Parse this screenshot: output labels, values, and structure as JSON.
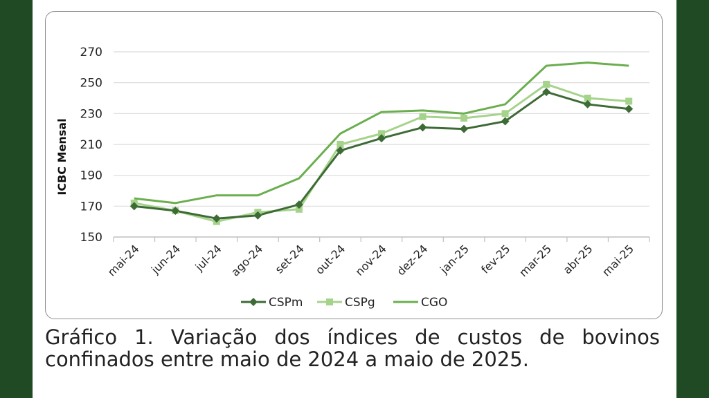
{
  "colors": {
    "CSPm": "#3d6b35",
    "CSPg": "#a6d38b",
    "CGO": "#6aae4e",
    "grid": "#d9d9d9",
    "frame": "#1f4a24"
  },
  "caption": "Gráfico 1. Variação dos índices de custos de bovinos confinados entre maio de 2024 a maio de 2025.",
  "chart_data": {
    "type": "line",
    "title": "",
    "xlabel": "",
    "ylabel": "ICBC Mensal",
    "categories": [
      "mai-24",
      "jun-24",
      "jul-24",
      "ago-24",
      "set-24",
      "out-24",
      "nov-24",
      "dez-24",
      "jan-25",
      "fev-25",
      "mar-25",
      "abr-25",
      "mai-25"
    ],
    "yticks": [
      150,
      170,
      190,
      210,
      230,
      250,
      270
    ],
    "ylim": [
      150,
      270
    ],
    "grid": true,
    "legend_position": "bottom",
    "series": [
      {
        "name": "CSPm",
        "marker": "diamond",
        "color": "#3d6b35",
        "values": [
          170,
          167,
          162,
          164,
          171,
          206,
          214,
          221,
          220,
          225,
          244,
          236,
          233
        ]
      },
      {
        "name": "CSPg",
        "marker": "square",
        "color": "#a6d38b",
        "values": [
          172,
          167,
          160,
          166,
          168,
          210,
          217,
          228,
          227,
          230,
          249,
          240,
          238
        ]
      },
      {
        "name": "CGO",
        "marker": "none",
        "color": "#6aae4e",
        "values": [
          175,
          172,
          177,
          177,
          188,
          217,
          231,
          232,
          230,
          236,
          261,
          263,
          261
        ]
      }
    ]
  }
}
